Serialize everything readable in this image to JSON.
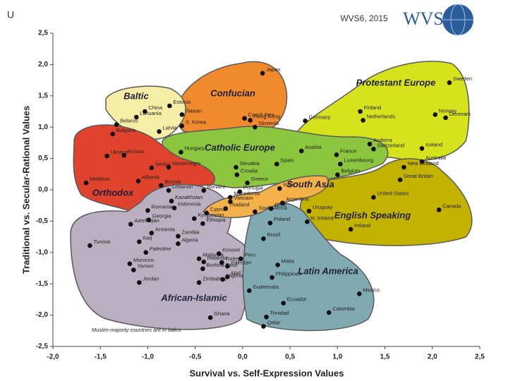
{
  "chart_data": {
    "type": "scatter",
    "corner_mark": "U",
    "title": "WVS6, 2015",
    "logo_text": "WVS",
    "x_label": "Survival vs. Self-Expression Values",
    "y_label": "Traditional vs. Secular-Rational Values",
    "note": "Muslim-majority countries are in italics",
    "xlim": [
      -2.0,
      2.5
    ],
    "ylim": [
      -2.5,
      2.5
    ],
    "xticks": [
      {
        "value": -2.0,
        "label": "-2,0"
      },
      {
        "value": -1.5,
        "label": "-1,5"
      },
      {
        "value": -1.0,
        "label": "-1,0"
      },
      {
        "value": -0.5,
        "label": "-0,5"
      },
      {
        "value": 0.0,
        "label": "0,0"
      },
      {
        "value": 0.5,
        "label": "0,5"
      },
      {
        "value": 1.0,
        "label": "1,0"
      },
      {
        "value": 1.5,
        "label": "1,5"
      },
      {
        "value": 2.0,
        "label": "2,0"
      },
      {
        "value": 2.5,
        "label": "2,5"
      }
    ],
    "yticks": [
      {
        "value": 2.5,
        "label": "2,5"
      },
      {
        "value": 2.0,
        "label": "2,0"
      },
      {
        "value": 1.5,
        "label": "1,5"
      },
      {
        "value": 1.0,
        "label": "1,0"
      },
      {
        "value": 0.5,
        "label": "0,5"
      },
      {
        "value": 0.0,
        "label": "0,0"
      },
      {
        "value": -0.5,
        "label": "-0,5"
      },
      {
        "value": -1.0,
        "label": "-1,0"
      },
      {
        "value": -1.5,
        "label": "-1,5"
      },
      {
        "value": -2.0,
        "label": "-2,0"
      },
      {
        "value": -2.5,
        "label": "-2,5"
      }
    ],
    "grid": false,
    "regions": [
      {
        "label": "Baltic",
        "color": "#f6eea6"
      },
      {
        "label": "Confucian",
        "color": "#f08a2c"
      },
      {
        "label": "Protestant Europe",
        "color": "#d6e21c"
      },
      {
        "label": "Catholic Europe",
        "color": "#8cc63f"
      },
      {
        "label": "Orthodox",
        "color": "#e0432c"
      },
      {
        "label": "South Asia",
        "color": "#f4b14a"
      },
      {
        "label": "English Speaking",
        "color": "#c4b200"
      },
      {
        "label": "Latin America",
        "color": "#80a9b2"
      },
      {
        "label": "African-Islamic",
        "color": "#b9afc0"
      }
    ],
    "series": [
      {
        "color": "#111111",
        "labels": [
          "Japan",
          "Estonia",
          "Lithuania",
          "China",
          "Taiwan",
          "S. Korea",
          "Hong Kong",
          "Czech Rep.",
          "Slovenia",
          "Belarus",
          "Bulgaria",
          "Latvia",
          "Germany",
          "Finland",
          "Netherlands",
          "Norway",
          "Denmark",
          "Sweden",
          "Ukraine",
          "Russia",
          "Hungary",
          "Serbia",
          "Montenegro",
          "Slovakia",
          "Austria",
          "France",
          "Andorra",
          "Switzerland",
          "Iceland",
          "Spain",
          "Luxembourg",
          "Belgium",
          "Moldova",
          "Albania",
          "Bosnia",
          "Croatia",
          "Greece",
          "Portugal",
          "Lebanon",
          "Bonaire",
          "Macedonia",
          "Kazakhstan",
          "Indonesia",
          "Vietnam",
          "Thailand",
          "Cyprus",
          "Kyrgyzstan",
          "Ethiopia",
          "Romania",
          "Azerbaijan",
          "Georgia",
          "Armenia",
          "Tunisia",
          "Iraq",
          "Zambia",
          "Algeria",
          "South Africa",
          "Chile",
          "Uruguay",
          "Poland",
          "India",
          "Argentina",
          "Brazil",
          "N. Ireland",
          "Ireland",
          "United States",
          "Great Britain",
          "New Zealand",
          "Australia",
          "Canada",
          "Palestine",
          "Morocco",
          "Yemen",
          "Jordan",
          "Malaysia",
          "Rwanda",
          "Burkina Faso",
          "Turkey",
          "Pakistan",
          "Kosovo",
          "Peru",
          "Mali",
          "Nigeria",
          "Zimbabwe",
          "Ghana",
          "Malta",
          "Philippines",
          "Guatemala",
          "Ecuador",
          "Mexico",
          "Colombia",
          "Trinidad",
          "Qatar"
        ],
        "italic": [
          false,
          false,
          false,
          false,
          false,
          false,
          false,
          false,
          false,
          false,
          false,
          false,
          false,
          false,
          false,
          false,
          false,
          false,
          false,
          false,
          false,
          false,
          false,
          false,
          false,
          false,
          false,
          false,
          false,
          false,
          false,
          false,
          false,
          true,
          true,
          false,
          false,
          false,
          true,
          false,
          false,
          true,
          true,
          false,
          false,
          false,
          true,
          false,
          false,
          true,
          false,
          false,
          true,
          true,
          false,
          true,
          false,
          false,
          false,
          false,
          false,
          false,
          false,
          false,
          false,
          false,
          false,
          false,
          false,
          false,
          true,
          true,
          true,
          true,
          true,
          false,
          false,
          true,
          true,
          true,
          false,
          true,
          false,
          false,
          false,
          false,
          false,
          false,
          false,
          false,
          false,
          false,
          true
        ],
        "x": [
          0.21,
          -0.77,
          -1.12,
          -1.03,
          -0.64,
          -0.64,
          0.08,
          0.02,
          0.13,
          -1.33,
          -1.37,
          -0.88,
          0.66,
          1.24,
          1.27,
          2.03,
          2.14,
          2.18,
          -1.43,
          -1.25,
          -0.65,
          -0.96,
          -0.78,
          -0.07,
          0.62,
          0.99,
          1.34,
          1.38,
          1.89,
          0.36,
          1.03,
          1.0,
          -1.65,
          -1.1,
          -0.86,
          -0.06,
          0.05,
          -0.03,
          -0.78,
          -0.41,
          -0.13,
          -0.75,
          -0.72,
          -0.13,
          -0.18,
          -0.38,
          -0.51,
          -0.42,
          -1.0,
          -1.18,
          -0.99,
          -0.96,
          -1.61,
          -1.09,
          -0.68,
          -0.68,
          0.13,
          0.3,
          0.7,
          0.29,
          0.39,
          0.42,
          0.22,
          0.68,
          1.14,
          1.38,
          1.66,
          1.7,
          1.89,
          2.07,
          -1.02,
          -1.19,
          -1.15,
          -1.09,
          -0.46,
          -0.41,
          -0.42,
          -0.22,
          -0.16,
          -0.25,
          -0.02,
          -0.16,
          -0.21,
          -0.46,
          -0.34,
          0.37,
          0.31,
          0.07,
          0.43,
          1.23,
          0.91,
          0.25,
          0.22
        ],
        "values": [
          1.86,
          1.34,
          1.16,
          1.25,
          1.2,
          1.02,
          1.11,
          1.14,
          1.0,
          1.04,
          0.89,
          0.93,
          1.1,
          1.25,
          1.11,
          1.2,
          1.15,
          1.71,
          0.54,
          0.55,
          0.6,
          0.35,
          0.36,
          0.36,
          0.62,
          0.56,
          0.73,
          0.65,
          0.66,
          0.41,
          0.41,
          0.24,
          0.11,
          0.14,
          0.07,
          0.24,
          0.11,
          -0.03,
          -0.01,
          -0.01,
          -0.12,
          -0.18,
          -0.29,
          -0.19,
          -0.3,
          -0.37,
          -0.46,
          -0.54,
          -0.33,
          -0.55,
          -0.48,
          -0.69,
          -0.89,
          -0.83,
          -0.74,
          -0.86,
          -0.35,
          -0.3,
          -0.34,
          -0.53,
          0.02,
          -0.21,
          -0.78,
          -0.51,
          -0.63,
          -0.12,
          0.16,
          0.36,
          0.45,
          -0.32,
          -1.0,
          -1.18,
          -1.28,
          -1.48,
          -1.1,
          -1.15,
          -1.26,
          -1.16,
          -1.22,
          -1.02,
          -1.1,
          -1.39,
          -1.43,
          -1.48,
          -2.04,
          -1.2,
          -1.4,
          -1.61,
          -1.81,
          -1.66,
          -1.96,
          -2.03,
          -2.18
        ]
      }
    ]
  }
}
